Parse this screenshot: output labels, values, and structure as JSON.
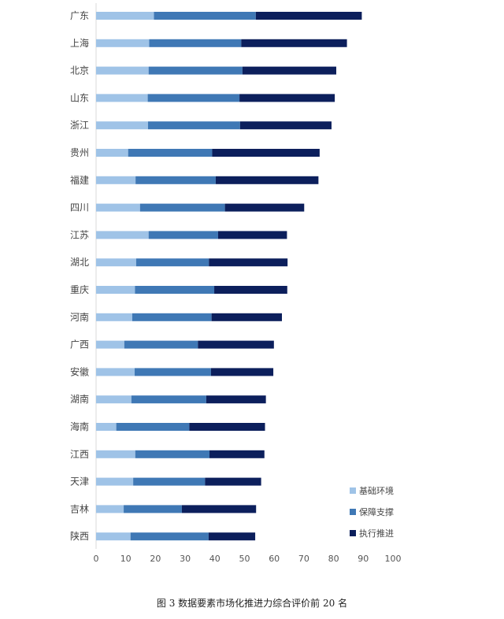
{
  "caption": "图 3 数据要素市场化推进力综合评价前 20 名",
  "colors": {
    "series": [
      "#9fc3e7",
      "#3f78b5",
      "#0c1f5c"
    ]
  },
  "chart_data": {
    "type": "bar",
    "orientation": "horizontal",
    "stacked": true,
    "categories": [
      "广东",
      "上海",
      "北京",
      "山东",
      "浙江",
      "贵州",
      "福建",
      "四川",
      "江苏",
      "湖北",
      "重庆",
      "河南",
      "广西",
      "安徽",
      "湖南",
      "海南",
      "江西",
      "天津",
      "吉林",
      "陕西"
    ],
    "series": [
      {
        "name": "基础环境",
        "values": [
          19.5,
          17.9,
          17.7,
          17.4,
          17.5,
          10.8,
          13.3,
          14.8,
          17.7,
          13.5,
          13.1,
          12.2,
          9.5,
          13.0,
          11.9,
          6.8,
          13.2,
          12.5,
          9.3,
          11.6
        ]
      },
      {
        "name": "保障支撑",
        "values": [
          34.3,
          31.0,
          31.6,
          30.9,
          31.0,
          28.3,
          27.0,
          28.6,
          23.4,
          24.5,
          26.7,
          26.7,
          24.8,
          25.7,
          25.2,
          24.6,
          25.0,
          24.2,
          19.6,
          26.3
        ]
      },
      {
        "name": "执行推进",
        "values": [
          35.7,
          35.6,
          31.6,
          32.1,
          30.8,
          36.2,
          34.6,
          26.7,
          23.2,
          26.5,
          24.6,
          23.7,
          25.6,
          21.0,
          20.1,
          25.5,
          18.5,
          18.9,
          25.0,
          15.7
        ]
      }
    ],
    "xlim": [
      0,
      100
    ],
    "xticks": [
      "0",
      "10",
      "20",
      "30",
      "40",
      "50",
      "60",
      "70",
      "80",
      "90",
      "100"
    ],
    "grid": false,
    "legend_position": "bottom-right"
  }
}
